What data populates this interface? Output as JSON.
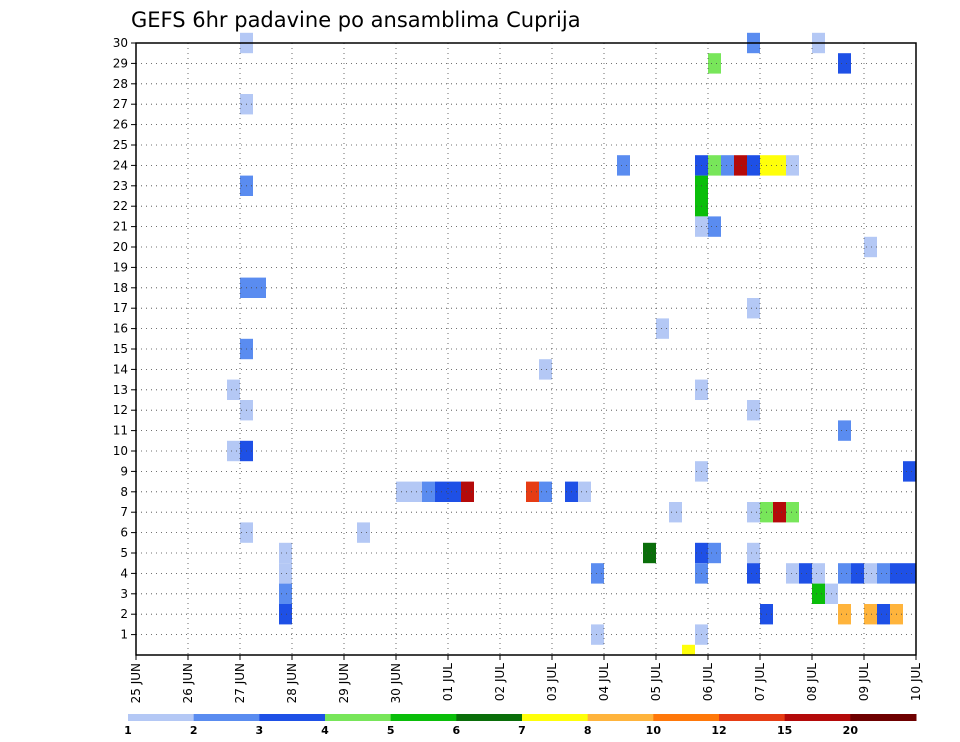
{
  "chart_data": {
    "type": "heatmap",
    "title": "GEFS 6hr padavine po ansamblima Cuprija",
    "x_labels": [
      "25 JUN",
      "26 JUN",
      "27 JUN",
      "28 JUN",
      "29 JUN",
      "30 JUN",
      "01 JUL",
      "02 JUL",
      "03 JUL",
      "04 JUL",
      "05 JUL",
      "06 JUL",
      "07 JUL",
      "08 JUL",
      "09 JUL",
      "10 JUL"
    ],
    "y_labels": [
      "1",
      "2",
      "3",
      "4",
      "5",
      "6",
      "7",
      "8",
      "9",
      "10",
      "11",
      "12",
      "13",
      "14",
      "15",
      "16",
      "17",
      "18",
      "19",
      "20",
      "21",
      "22",
      "23",
      "24",
      "25",
      "26",
      "27",
      "28",
      "29",
      "30"
    ],
    "x_step": "6 hours",
    "xlim_steps": [
      0,
      60
    ],
    "ylim": [
      0,
      30
    ],
    "grid": true,
    "color_scale": {
      "colors": [
        "#b4c8f5",
        "#5a8cf0",
        "#1e50e6",
        "#78e65a",
        "#0abe0a",
        "#0a6e0a",
        "#ffff0a",
        "#ffb43c",
        "#ff780a",
        "#e63c14",
        "#b40a0a",
        "#6e0000"
      ],
      "labels": [
        "1",
        "2",
        "3",
        "4",
        "5",
        "6",
        "7",
        "8",
        "10",
        "12",
        "15",
        "20"
      ]
    },
    "cells": [
      {
        "member": 30,
        "step": 8.5,
        "bin": 0
      },
      {
        "member": 30,
        "step": 47.5,
        "bin": 1
      },
      {
        "member": 30,
        "step": 52.5,
        "bin": 0
      },
      {
        "member": 29,
        "step": 44.5,
        "bin": 3
      },
      {
        "member": 29,
        "step": 54.5,
        "bin": 2
      },
      {
        "member": 27,
        "step": 8.5,
        "bin": 0
      },
      {
        "member": 24,
        "step": 37.5,
        "bin": 1
      },
      {
        "member": 24,
        "step": 43.5,
        "bin": 2
      },
      {
        "member": 24,
        "step": 44.5,
        "bin": 3
      },
      {
        "member": 24,
        "step": 45.5,
        "bin": 1
      },
      {
        "member": 24,
        "step": 46.5,
        "bin": 10
      },
      {
        "member": 24,
        "step": 47.5,
        "bin": 2
      },
      {
        "member": 24,
        "step": 48.5,
        "bin": 6
      },
      {
        "member": 24,
        "step": 49.5,
        "bin": 6
      },
      {
        "member": 24,
        "step": 50.5,
        "bin": 0
      },
      {
        "member": 23,
        "step": 8.5,
        "bin": 1
      },
      {
        "member": 23,
        "step": 43.5,
        "bin": 4
      },
      {
        "member": 22,
        "step": 43.5,
        "bin": 4
      },
      {
        "member": 21,
        "step": 43.5,
        "bin": 0
      },
      {
        "member": 21,
        "step": 44.5,
        "bin": 1
      },
      {
        "member": 20,
        "step": 56.5,
        "bin": 0
      },
      {
        "member": 18,
        "step": 8.5,
        "bin": 1
      },
      {
        "member": 18,
        "step": 9.5,
        "bin": 1
      },
      {
        "member": 17,
        "step": 47.5,
        "bin": 0
      },
      {
        "member": 16,
        "step": 40.5,
        "bin": 0
      },
      {
        "member": 15,
        "step": 8.5,
        "bin": 1
      },
      {
        "member": 14,
        "step": 31.5,
        "bin": 0
      },
      {
        "member": 13,
        "step": 7.5,
        "bin": 0
      },
      {
        "member": 13,
        "step": 43.5,
        "bin": 0
      },
      {
        "member": 12,
        "step": 8.5,
        "bin": 0
      },
      {
        "member": 12,
        "step": 47.5,
        "bin": 0
      },
      {
        "member": 11,
        "step": 54.5,
        "bin": 1
      },
      {
        "member": 10,
        "step": 7.5,
        "bin": 0
      },
      {
        "member": 10,
        "step": 8.5,
        "bin": 2
      },
      {
        "member": 9,
        "step": 43.5,
        "bin": 0
      },
      {
        "member": 9,
        "step": 59.5,
        "bin": 2
      },
      {
        "member": 8,
        "step": 20.5,
        "bin": 0
      },
      {
        "member": 8,
        "step": 21.5,
        "bin": 0
      },
      {
        "member": 8,
        "step": 22.5,
        "bin": 1
      },
      {
        "member": 8,
        "step": 23.5,
        "bin": 2
      },
      {
        "member": 8,
        "step": 24.5,
        "bin": 2
      },
      {
        "member": 8,
        "step": 25.5,
        "bin": 10
      },
      {
        "member": 8,
        "step": 30.5,
        "bin": 9
      },
      {
        "member": 8,
        "step": 31.5,
        "bin": 1
      },
      {
        "member": 8,
        "step": 33.5,
        "bin": 2
      },
      {
        "member": 8,
        "step": 34.5,
        "bin": 0
      },
      {
        "member": 7,
        "step": 41.5,
        "bin": 0
      },
      {
        "member": 7,
        "step": 47.5,
        "bin": 0
      },
      {
        "member": 7,
        "step": 48.5,
        "bin": 3
      },
      {
        "member": 7,
        "step": 49.5,
        "bin": 10
      },
      {
        "member": 7,
        "step": 50.5,
        "bin": 3
      },
      {
        "member": 6,
        "step": 8.5,
        "bin": 0
      },
      {
        "member": 6,
        "step": 17.5,
        "bin": 0
      },
      {
        "member": 5,
        "step": 11.5,
        "bin": 0
      },
      {
        "member": 5,
        "step": 39.5,
        "bin": 5
      },
      {
        "member": 5,
        "step": 43.5,
        "bin": 2
      },
      {
        "member": 5,
        "step": 44.5,
        "bin": 1
      },
      {
        "member": 5,
        "step": 47.5,
        "bin": 0
      },
      {
        "member": 4,
        "step": 11.5,
        "bin": 0
      },
      {
        "member": 4,
        "step": 35.5,
        "bin": 1
      },
      {
        "member": 4,
        "step": 43.5,
        "bin": 1
      },
      {
        "member": 4,
        "step": 47.5,
        "bin": 2
      },
      {
        "member": 4,
        "step": 50.5,
        "bin": 0
      },
      {
        "member": 4,
        "step": 51.5,
        "bin": 2
      },
      {
        "member": 4,
        "step": 52.5,
        "bin": 0
      },
      {
        "member": 4,
        "step": 54.5,
        "bin": 1
      },
      {
        "member": 4,
        "step": 55.5,
        "bin": 2
      },
      {
        "member": 4,
        "step": 56.5,
        "bin": 0
      },
      {
        "member": 4,
        "step": 57.5,
        "bin": 1
      },
      {
        "member": 4,
        "step": 58.5,
        "bin": 2
      },
      {
        "member": 4,
        "step": 59.5,
        "bin": 2
      },
      {
        "member": 3,
        "step": 11.5,
        "bin": 1
      },
      {
        "member": 3,
        "step": 52.5,
        "bin": 4
      },
      {
        "member": 3,
        "step": 53.5,
        "bin": 0
      },
      {
        "member": 2,
        "step": 11.5,
        "bin": 2
      },
      {
        "member": 2,
        "step": 48.5,
        "bin": 2
      },
      {
        "member": 2,
        "step": 54.5,
        "bin": 7
      },
      {
        "member": 2,
        "step": 56.5,
        "bin": 7
      },
      {
        "member": 2,
        "step": 57.5,
        "bin": 2
      },
      {
        "member": 2,
        "step": 58.5,
        "bin": 7
      },
      {
        "member": 1,
        "step": 35.5,
        "bin": 0
      },
      {
        "member": 1,
        "step": 43.5,
        "bin": 0
      },
      {
        "member": 0,
        "step": 42.5,
        "bin": 6
      }
    ]
  }
}
